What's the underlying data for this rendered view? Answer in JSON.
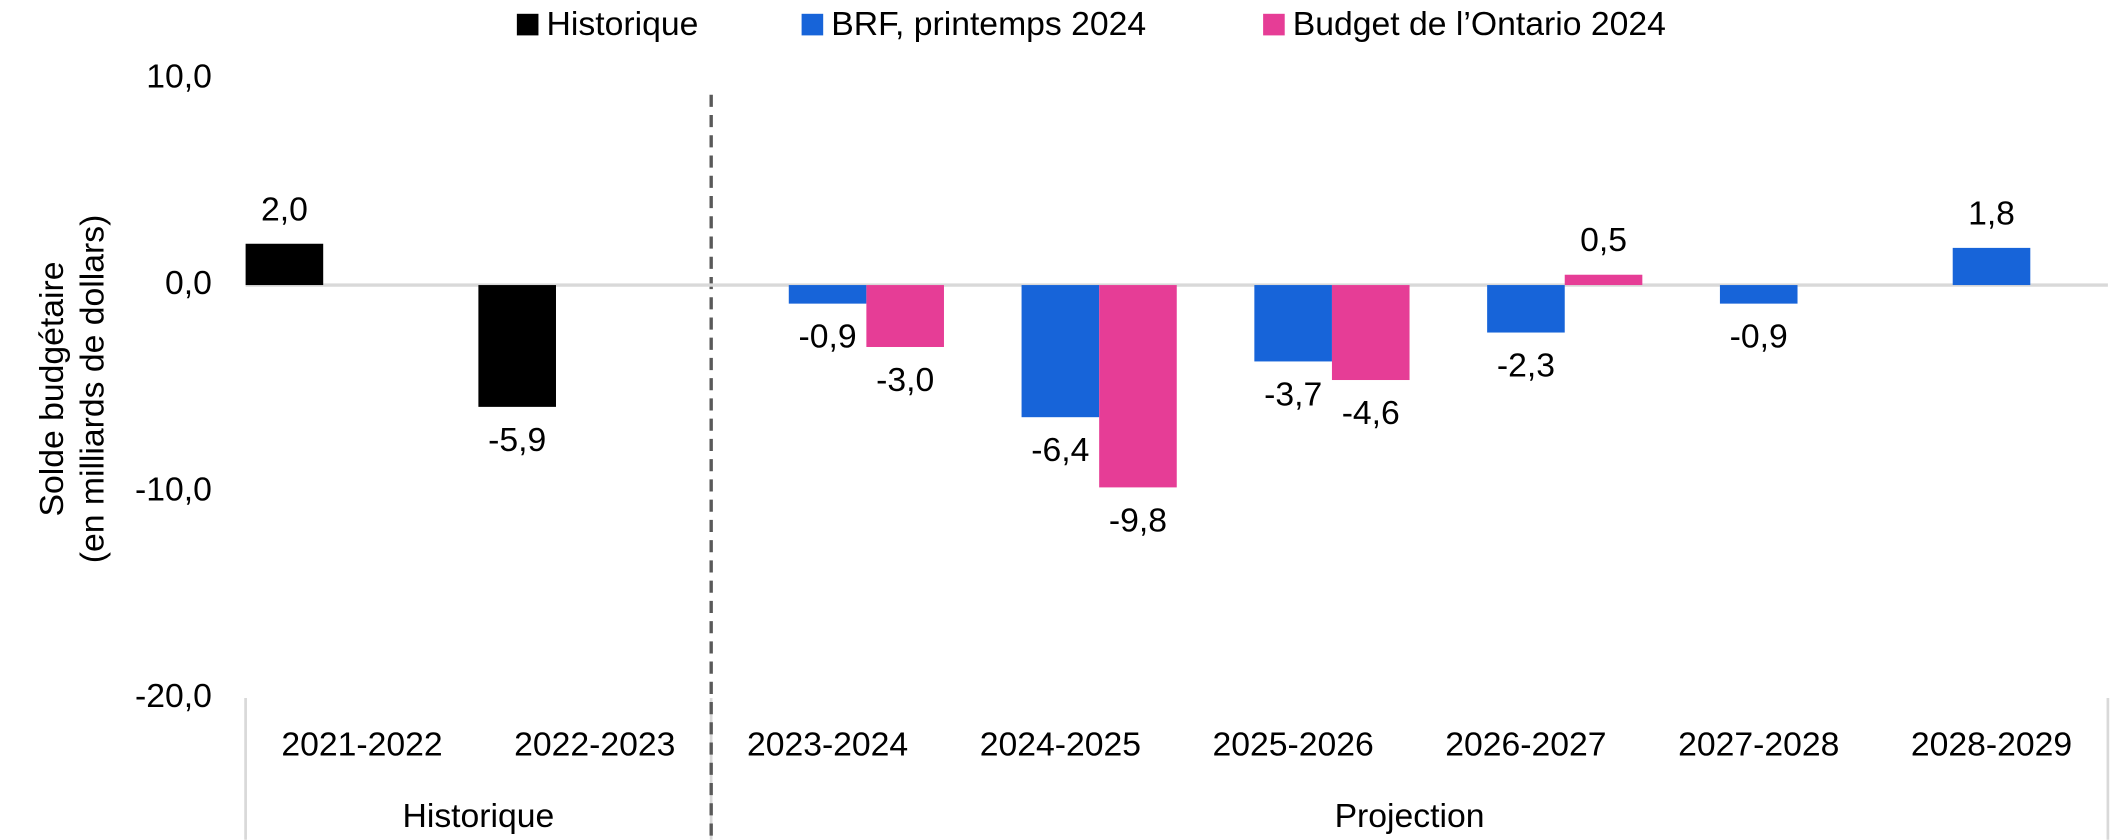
{
  "chart_data": {
    "type": "bar",
    "y_label": [
      "Solde budgétaire",
      "(en milliards de dollars)"
    ],
    "categories": [
      "2021-2022",
      "2022-2023",
      "2023-2024",
      "2024-2025",
      "2025-2026",
      "2026-2027",
      "2027-2028",
      "2028-2029"
    ],
    "groups": [
      "Historique",
      "Projection"
    ],
    "series": [
      {
        "name": "Historique",
        "color": "#000000",
        "values": [
          2.0,
          -5.9,
          null,
          null,
          null,
          null,
          null,
          null
        ],
        "value_labels": [
          "2,0",
          "-5,9",
          null,
          null,
          null,
          null,
          null,
          null
        ]
      },
      {
        "name": "BRF, printemps 2024",
        "color": "#1764d9",
        "values": [
          null,
          null,
          -0.9,
          -6.4,
          -3.7,
          -2.3,
          -0.9,
          1.8
        ],
        "value_labels": [
          null,
          null,
          "-0,9",
          "-6,4",
          "-3,7",
          "-2,3",
          "-0,9",
          "1,8"
        ]
      },
      {
        "name": "Budget de l’Ontario 2024",
        "color": "#e63d96",
        "values": [
          null,
          null,
          -3.0,
          -9.8,
          -4.6,
          0.5,
          null,
          null
        ],
        "value_labels": [
          null,
          null,
          "-3,0",
          "-9,8",
          "-4,6",
          "0,5",
          null,
          null
        ]
      }
    ],
    "ylim": [
      -20,
      10
    ],
    "yticks": [
      {
        "value": -20,
        "label": "-20,0"
      },
      {
        "value": -10,
        "label": "-10,0"
      },
      {
        "value": 0,
        "label": "0,0"
      },
      {
        "value": 10,
        "label": "10,0"
      }
    ],
    "legend": "top"
  }
}
